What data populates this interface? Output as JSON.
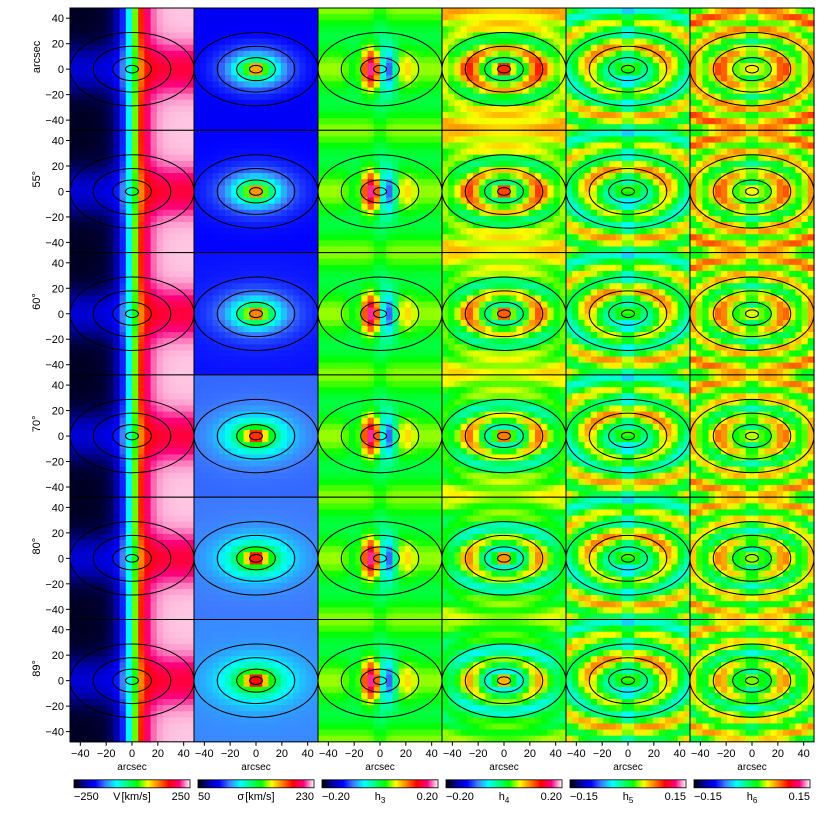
{
  "chart_data": {
    "type": "heatmap",
    "title": "",
    "panel_grid": {
      "rows": 6,
      "columns": 6
    },
    "row_labels": [
      "arcsec",
      "55°",
      "60°",
      "70°",
      "80°",
      "89°"
    ],
    "ylabel": "arcsec",
    "xlabel": "arcsec",
    "x_ticks": [
      -40,
      -20,
      0,
      20,
      40
    ],
    "x_tick_labels": [
      "−40",
      "−20",
      "0",
      "20",
      "40"
    ],
    "y_ticks": [
      40,
      20,
      0,
      -20,
      -40
    ],
    "y_tick_labels": [
      "40",
      "20",
      "0",
      "−20",
      "−40"
    ],
    "xlim": [
      -48,
      48
    ],
    "ylim": [
      -48,
      48
    ],
    "isophote_ellipses": {
      "semi_major": [
        5,
        15,
        30,
        48
      ],
      "axis_ratio": 0.6
    },
    "columns": [
      {
        "name": "V",
        "unit": "[km/s]",
        "label_main": "V",
        "label_unit": "[km/s]",
        "label_sub": "",
        "range": [
          -250,
          250
        ],
        "min_label": "−250",
        "max_label": "250",
        "field": "rotation"
      },
      {
        "name": "σ",
        "unit": "[km/s]",
        "label_main": "σ",
        "label_unit": "[km/s]",
        "label_sub": "",
        "range": [
          50,
          230
        ],
        "min_label": "50",
        "max_label": "230",
        "field": "dispersion"
      },
      {
        "name": "h3",
        "unit": "",
        "label_main": "h",
        "label_unit": "",
        "label_sub": "3",
        "range": [
          -0.2,
          0.2
        ],
        "min_label": "−0.20",
        "max_label": "0.20",
        "field": "antisymmetric"
      },
      {
        "name": "h4",
        "unit": "",
        "label_main": "h",
        "label_unit": "",
        "label_sub": "4",
        "range": [
          -0.2,
          0.2
        ],
        "min_label": "−0.20",
        "max_label": "0.20",
        "field": "even4"
      },
      {
        "name": "h5",
        "unit": "",
        "label_main": "h",
        "label_unit": "",
        "label_sub": "5",
        "range": [
          -0.15,
          0.15
        ],
        "min_label": "−0.15",
        "max_label": "0.15",
        "field": "even5"
      },
      {
        "name": "h6",
        "unit": "",
        "label_main": "h",
        "label_unit": "",
        "label_sub": "6",
        "range": [
          -0.15,
          0.15
        ],
        "min_label": "−0.15",
        "max_label": "0.15",
        "field": "even6"
      }
    ],
    "colorbar_colors": [
      "#000000",
      "#0000a0",
      "#0000ff",
      "#3f7fff",
      "#00ffff",
      "#00ff7f",
      "#00ff00",
      "#ffff00",
      "#ff7f00",
      "#ff0000",
      "#ff0080",
      "#ffffff"
    ]
  }
}
